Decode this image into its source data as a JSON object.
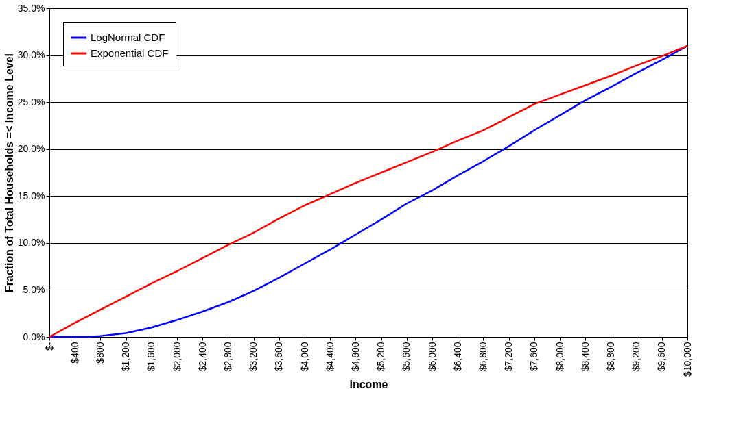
{
  "chart_data": {
    "type": "line",
    "xlabel": "Income",
    "ylabel": "Fraction of Total Households =< Income Level",
    "x": [
      0,
      400,
      600,
      800,
      1200,
      1600,
      2000,
      2400,
      2800,
      3200,
      3600,
      4000,
      4400,
      4800,
      5200,
      5600,
      6000,
      6400,
      6800,
      7200,
      7600,
      8000,
      8400,
      8800,
      9200,
      9600,
      10000
    ],
    "series": [
      {
        "name": "LogNormal CDF",
        "color": "#0000ff",
        "values": [
          0,
          0,
          0,
          0.1,
          0.4,
          1.0,
          1.8,
          2.7,
          3.7,
          4.9,
          6.3,
          7.8,
          9.3,
          10.9,
          12.5,
          14.2,
          15.6,
          17.2,
          18.7,
          20.3,
          22.0,
          23.6,
          25.2,
          26.6,
          28.1,
          29.5,
          31.0
        ]
      },
      {
        "name": "Exponential CDF",
        "color": "#ff0000",
        "values": [
          0,
          1.5,
          2.2,
          2.9,
          4.3,
          5.7,
          7.0,
          8.4,
          9.8,
          11.1,
          12.6,
          14.0,
          15.2,
          16.4,
          17.5,
          18.6,
          19.7,
          20.9,
          22.0,
          23.4,
          24.8,
          25.8,
          26.8,
          27.8,
          28.9,
          29.9,
          31.0
        ]
      }
    ],
    "xlim": [
      0,
      10000
    ],
    "xticks": [
      {
        "value": 0,
        "label": "$-"
      },
      {
        "value": 400,
        "label": "$400"
      },
      {
        "value": 800,
        "label": "$800"
      },
      {
        "value": 1200,
        "label": "$1,200"
      },
      {
        "value": 1600,
        "label": "$1,600"
      },
      {
        "value": 2000,
        "label": "$2,000"
      },
      {
        "value": 2400,
        "label": "$2,400"
      },
      {
        "value": 2800,
        "label": "$2,800"
      },
      {
        "value": 3200,
        "label": "$3,200"
      },
      {
        "value": 3600,
        "label": "$3,600"
      },
      {
        "value": 4000,
        "label": "$4,000"
      },
      {
        "value": 4400,
        "label": "$4,400"
      },
      {
        "value": 4800,
        "label": "$4,800"
      },
      {
        "value": 5200,
        "label": "$5,200"
      },
      {
        "value": 5600,
        "label": "$5,600"
      },
      {
        "value": 6000,
        "label": "$6,000"
      },
      {
        "value": 6400,
        "label": "$6,400"
      },
      {
        "value": 6800,
        "label": "$6,800"
      },
      {
        "value": 7200,
        "label": "$7,200"
      },
      {
        "value": 7600,
        "label": "$7,600"
      },
      {
        "value": 8000,
        "label": "$8,000"
      },
      {
        "value": 8400,
        "label": "$8,400"
      },
      {
        "value": 8800,
        "label": "$8,800"
      },
      {
        "value": 9200,
        "label": "$9,200"
      },
      {
        "value": 9600,
        "label": "$9,600"
      },
      {
        "value": 10000,
        "label": "$10,000"
      }
    ],
    "ylim": [
      0,
      35
    ],
    "yticks": [
      {
        "value": 0,
        "label": "0.0%"
      },
      {
        "value": 5,
        "label": "5.0%"
      },
      {
        "value": 10,
        "label": "10.0%"
      },
      {
        "value": 15,
        "label": "15.0%"
      },
      {
        "value": 20,
        "label": "20.0%"
      },
      {
        "value": 25,
        "label": "25.0%"
      },
      {
        "value": 30,
        "label": "30.0%"
      },
      {
        "value": 35,
        "label": "35.0%"
      }
    ],
    "grid": "y",
    "legend": "top left",
    "marker": "none",
    "line_style": "solid"
  }
}
